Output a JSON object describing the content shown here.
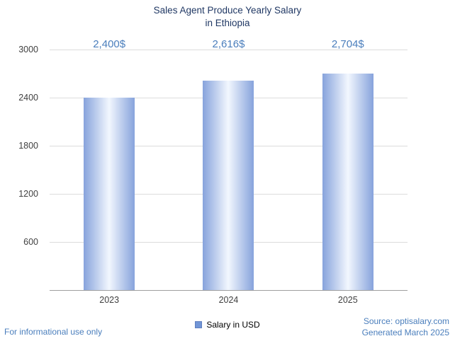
{
  "chart": {
    "title_line1": "Sales Agent Produce Yearly Salary",
    "title_line2": "in Ethiopia"
  },
  "chart_data": {
    "type": "bar",
    "title": "Sales Agent Produce Yearly Salary in Ethiopia",
    "categories": [
      "2023",
      "2024",
      "2025"
    ],
    "values": [
      2400,
      2616,
      2704
    ],
    "value_labels": [
      "2,400$",
      "2,616$",
      "2,704$"
    ],
    "series_name": "Salary in USD",
    "xlabel": "",
    "ylabel": "",
    "ylim": [
      0,
      3000
    ],
    "yticks": [
      600,
      1200,
      1800,
      2400,
      3000
    ],
    "grid": true,
    "legend_position": "bottom"
  },
  "legend": {
    "label": "Salary in USD"
  },
  "footer": {
    "left": "For informational use only",
    "source": "Source: optisalary.com",
    "generated": "Generated March 2025"
  },
  "colors": {
    "title": "#203864",
    "value_label": "#4a7ebc",
    "link": "#4a7ebc",
    "axis_text": "#404040",
    "grid": "#dcdcdc",
    "axis_line": "#9e9e9e",
    "bar_edge": "#87a3dc",
    "bar_center": "#f2f7fe",
    "legend_square": "#7195d6",
    "legend_square_border": "#5f7fc0"
  }
}
